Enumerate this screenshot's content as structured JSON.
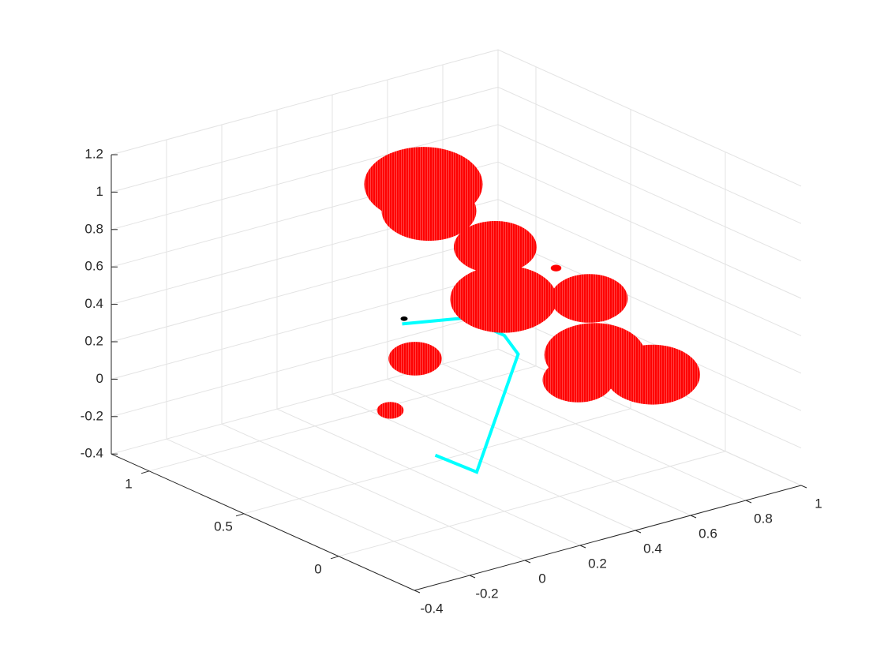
{
  "chart_data": {
    "type": "scatter3d",
    "xlim": [
      -0.4,
      1
    ],
    "ylim": [
      -0.4,
      1.2
    ],
    "zlim": [
      -0.4,
      1.2
    ],
    "xticks": [
      -0.4,
      -0.2,
      0,
      0.2,
      0.4,
      0.6,
      0.8,
      1
    ],
    "yticks": [
      0,
      0.5,
      1
    ],
    "zticks": [
      -0.4,
      -0.2,
      0,
      0.2,
      0.4,
      0.6,
      0.8,
      1,
      1.2
    ],
    "grid": true,
    "spheres": {
      "color": "#ff0000",
      "x": [
        0.73,
        0.25,
        0.27,
        0.51,
        0.85,
        0.87,
        0.87,
        1.08,
        0.81
      ],
      "y": [
        0.5,
        0.5,
        0.5,
        0.5,
        0.5,
        0.5,
        0.5,
        0.5,
        0.5
      ],
      "z": [
        0.46,
        1.1,
        0.95,
        0.66,
        0.25,
        0.2,
        -0.06,
        -0.25,
        -0.17
      ],
      "r": [
        0.018,
        0.2,
        0.16,
        0.14,
        0.13,
        0.085,
        0.17,
        0.16,
        0.12
      ]
    },
    "path": {
      "color": "#00ffff",
      "x": [
        -0.05,
        0.1,
        0.25,
        0.2,
        0.06,
        -0.17
      ],
      "y": [
        0,
        0,
        0,
        0,
        0,
        0
      ],
      "z": [
        0,
        -0.15,
        0.42,
        0.54,
        0.69,
        0.75
      ]
    },
    "front_spheres": {
      "color": "#ff0000",
      "x": [
        0.54,
        0.56,
        0.22,
        0.13
      ],
      "y": [
        0.5,
        0.5,
        0.5,
        0.5
      ],
      "z": [
        0.37,
        0.32,
        0.18,
        -0.06
      ],
      "r": [
        0.18,
        0.05,
        0.09,
        0.045
      ]
    },
    "marker": {
      "color": "#000000",
      "x": [
        0.18
      ],
      "y": [
        0.5
      ],
      "z": [
        0.41
      ],
      "r": [
        0.012
      ]
    }
  }
}
